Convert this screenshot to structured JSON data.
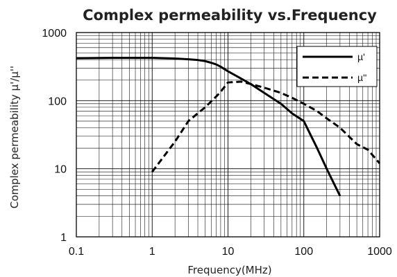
{
  "chart_data": {
    "type": "line",
    "title": "Complex permeability vs.Frequency",
    "xlabel": "Frequency(MHz)",
    "ylabel": "Complex permeability µ'/µ''",
    "xscale": "log",
    "yscale": "log",
    "xlim": [
      0.1,
      1000
    ],
    "ylim": [
      1,
      1000
    ],
    "x_ticks": [
      "0.1",
      "1",
      "10",
      "100",
      "1000"
    ],
    "y_ticks": [
      "1",
      "10",
      "100",
      "1000"
    ],
    "grid": true,
    "legend_position": "top-right",
    "series": [
      {
        "name": "µ'",
        "style": "solid",
        "x": [
          0.1,
          0.3,
          1,
          2,
          3,
          4,
          5,
          6,
          7,
          8,
          10,
          15,
          20,
          30,
          50,
          70,
          100,
          150,
          200,
          300
        ],
        "y": [
          420,
          425,
          425,
          415,
          405,
          395,
          380,
          360,
          340,
          315,
          270,
          210,
          175,
          130,
          90,
          65,
          50,
          20,
          10,
          4
        ]
      },
      {
        "name": "µ''",
        "style": "dashed",
        "x": [
          1,
          2,
          3,
          5,
          7,
          8,
          10,
          15,
          20,
          30,
          50,
          70,
          100,
          150,
          200,
          300,
          500,
          700,
          1000
        ],
        "y": [
          9,
          25,
          50,
          80,
          115,
          135,
          185,
          190,
          175,
          155,
          130,
          110,
          90,
          70,
          55,
          40,
          23,
          19,
          12
        ]
      }
    ],
    "colors": {
      "line": "#000000",
      "grid": "#000000",
      "background": "#ffffff"
    }
  }
}
